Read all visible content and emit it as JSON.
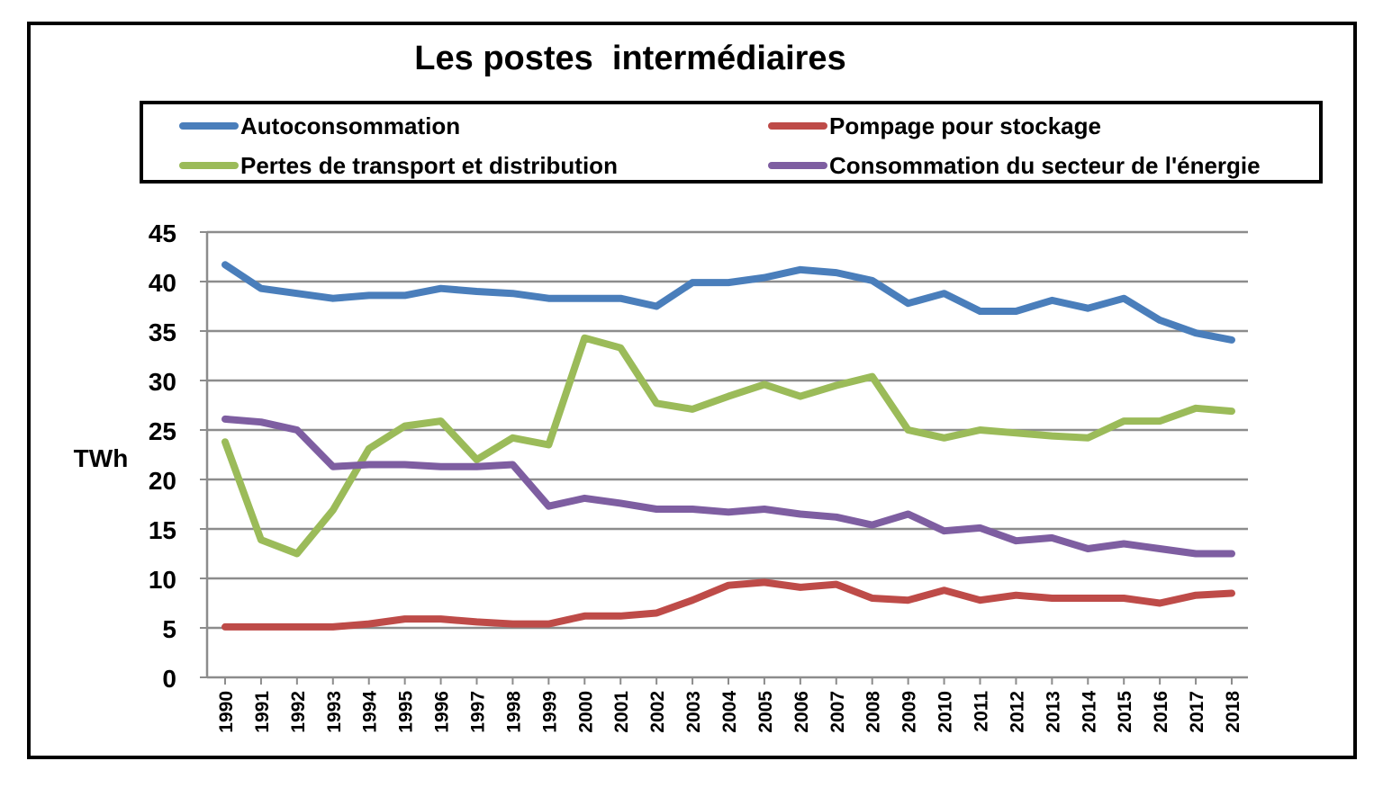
{
  "chart_data": {
    "type": "line",
    "title": "Les postes  intermédiaires",
    "ylabel": "TWh",
    "xlabel": "",
    "ylim": [
      0,
      45
    ],
    "yticks": [
      0,
      5,
      10,
      15,
      20,
      25,
      30,
      35,
      40,
      45
    ],
    "grid": "horizontal",
    "legend_position": "top",
    "x": [
      "1990",
      "1991",
      "1992",
      "1993",
      "1994",
      "1995",
      "1996",
      "1997",
      "1998",
      "1999",
      "2000",
      "2001",
      "2002",
      "2003",
      "2004",
      "2005",
      "2006",
      "2007",
      "2008",
      "2009",
      "2010",
      "2011",
      "2012",
      "2013",
      "2014",
      "2015",
      "2016",
      "2017",
      "2018"
    ],
    "series": [
      {
        "name": "Autoconsommation",
        "color": "#4a7ebb",
        "values": [
          41.7,
          39.3,
          38.8,
          38.3,
          38.6,
          38.6,
          39.3,
          39.0,
          38.8,
          38.3,
          38.3,
          38.3,
          37.5,
          39.9,
          39.9,
          40.4,
          41.2,
          40.9,
          40.1,
          37.8,
          38.8,
          37.0,
          37.0,
          38.1,
          37.3,
          38.3,
          36.1,
          34.8,
          34.1
        ]
      },
      {
        "name": "Pompage pour stockage",
        "color": "#be4b48",
        "values": [
          5.1,
          5.1,
          5.1,
          5.1,
          5.4,
          5.9,
          5.9,
          5.6,
          5.4,
          5.4,
          6.2,
          6.2,
          6.5,
          7.8,
          9.3,
          9.6,
          9.1,
          9.4,
          8.0,
          7.8,
          8.8,
          7.8,
          8.3,
          8.0,
          8.0,
          8.0,
          7.5,
          8.3,
          8.5
        ]
      },
      {
        "name": "Pertes de transport et distribution",
        "color": "#9bbb59",
        "values": [
          23.8,
          13.9,
          12.5,
          16.9,
          23.1,
          25.4,
          25.9,
          22.0,
          24.2,
          23.5,
          34.3,
          33.3,
          27.7,
          27.1,
          28.4,
          29.6,
          28.4,
          29.5,
          30.4,
          25.0,
          24.2,
          25.0,
          24.7,
          24.4,
          24.2,
          25.9,
          25.9,
          27.2,
          26.9
        ]
      },
      {
        "name": "Consommation du secteur de l'énergie",
        "color": "#7e5ea1",
        "values": [
          26.1,
          25.8,
          25.0,
          21.3,
          21.5,
          21.5,
          21.3,
          21.3,
          21.5,
          17.3,
          18.1,
          17.6,
          17.0,
          17.0,
          16.7,
          17.0,
          16.5,
          16.2,
          15.4,
          16.5,
          14.8,
          15.1,
          13.8,
          14.1,
          13.0,
          13.5,
          13.0,
          12.5,
          12.5
        ]
      }
    ]
  }
}
